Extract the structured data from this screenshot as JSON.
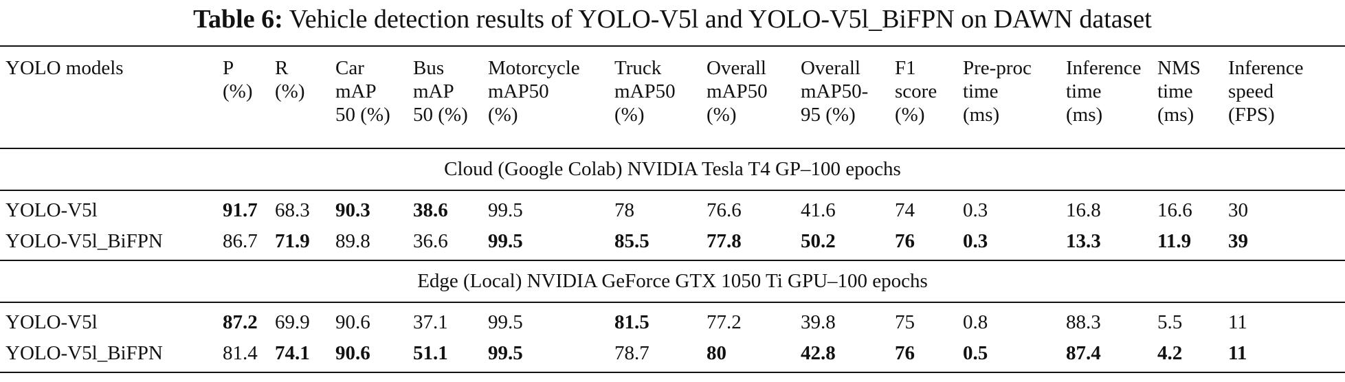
{
  "caption": {
    "label": "Table 6:",
    "text": "Vehicle detection results of YOLO-V5l and YOLO-V5l_BiFPN on DAWN dataset"
  },
  "columns": [
    {
      "key": "model",
      "lines": [
        "YOLO models"
      ]
    },
    {
      "key": "p",
      "lines": [
        "P",
        "(%)"
      ]
    },
    {
      "key": "r",
      "lines": [
        "R",
        "(%)"
      ]
    },
    {
      "key": "car",
      "lines": [
        "Car",
        "mAP",
        "50 (%)"
      ]
    },
    {
      "key": "bus",
      "lines": [
        "Bus",
        "mAP",
        "50 (%)"
      ]
    },
    {
      "key": "motorcycle",
      "lines": [
        "Motorcycle",
        "mAP50",
        "(%)"
      ]
    },
    {
      "key": "truck",
      "lines": [
        "Truck",
        "mAP50",
        "(%)"
      ]
    },
    {
      "key": "overall50",
      "lines": [
        "Overall",
        "mAP50",
        "(%)"
      ]
    },
    {
      "key": "overall5095",
      "lines": [
        "Overall",
        "mAP50-",
        "95 (%)"
      ]
    },
    {
      "key": "f1",
      "lines": [
        "F1",
        "score",
        "(%)"
      ]
    },
    {
      "key": "preproc",
      "lines": [
        "Pre-proc",
        "time",
        "(ms)"
      ]
    },
    {
      "key": "inference",
      "lines": [
        "Inference",
        "time",
        "(ms)"
      ]
    },
    {
      "key": "nms",
      "lines": [
        "NMS",
        "time",
        "(ms)"
      ]
    },
    {
      "key": "speed",
      "lines": [
        "Inference",
        "speed",
        "(FPS)"
      ]
    }
  ],
  "sections": [
    {
      "title": "Cloud (Google Colab) NVIDIA Tesla T4 GP–100 epochs",
      "rows": [
        {
          "cells": [
            "YOLO-V5l",
            "91.7",
            "68.3",
            "90.3",
            "38.6",
            "99.5",
            "78",
            "76.6",
            "41.6",
            "74",
            "0.3",
            "16.8",
            "16.6",
            "30"
          ],
          "bold": [
            false,
            true,
            false,
            true,
            true,
            false,
            false,
            false,
            false,
            false,
            false,
            false,
            false,
            false
          ]
        },
        {
          "cells": [
            "YOLO-V5l_BiFPN",
            "86.7",
            "71.9",
            "89.8",
            "36.6",
            "99.5",
            "85.5",
            "77.8",
            "50.2",
            "76",
            "0.3",
            "13.3",
            "11.9",
            "39"
          ],
          "bold": [
            false,
            false,
            true,
            false,
            false,
            true,
            true,
            true,
            true,
            true,
            true,
            true,
            true,
            true
          ]
        }
      ]
    },
    {
      "title": "Edge (Local) NVIDIA GeForce GTX 1050 Ti GPU–100 epochs",
      "rows": [
        {
          "cells": [
            "YOLO-V5l",
            "87.2",
            "69.9",
            "90.6",
            "37.1",
            "99.5",
            "81.5",
            "77.2",
            "39.8",
            "75",
            "0.8",
            "88.3",
            "5.5",
            "11"
          ],
          "bold": [
            false,
            true,
            false,
            false,
            false,
            false,
            true,
            false,
            false,
            false,
            false,
            false,
            false,
            false
          ]
        },
        {
          "cells": [
            "YOLO-V5l_BiFPN",
            "81.4",
            "74.1",
            "90.6",
            "51.1",
            "99.5",
            "78.7",
            "80",
            "42.8",
            "76",
            "0.5",
            "87.4",
            "4.2",
            "11"
          ],
          "bold": [
            false,
            false,
            true,
            true,
            true,
            true,
            false,
            true,
            true,
            true,
            true,
            true,
            true,
            true
          ]
        }
      ]
    }
  ]
}
